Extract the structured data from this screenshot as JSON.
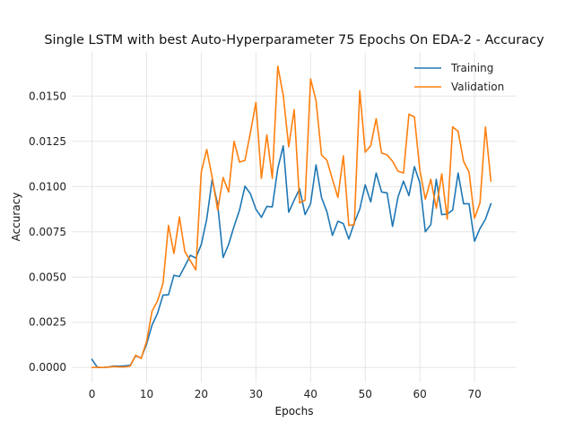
{
  "chart_data": {
    "type": "line",
    "title": "Single LSTM with best Auto-Hyperparameter 75 Epochs On EDA-2 - Accuracy",
    "xlabel": "Epochs",
    "ylabel": "Accuracy",
    "xlim": [
      -3.7,
      77.7
    ],
    "ylim": [
      -0.00083,
      0.01744
    ],
    "xticks": [
      0,
      10,
      20,
      30,
      40,
      50,
      60,
      70
    ],
    "yticks": [
      0.0,
      0.0025,
      0.005,
      0.0075,
      0.01,
      0.0125,
      0.015
    ],
    "ytick_labels": [
      "0.0000",
      "0.0025",
      "0.0050",
      "0.0075",
      "0.0100",
      "0.0125",
      "0.0150"
    ],
    "grid": true,
    "legend_position": "top-right",
    "series": [
      {
        "name": "Training",
        "color": "#1f77b4",
        "values": [
          0.00045,
          0.0,
          0.0,
          3e-05,
          8e-05,
          7e-05,
          9e-05,
          0.00012,
          0.00065,
          0.00052,
          0.0013,
          0.00235,
          0.003,
          0.004,
          0.00402,
          0.0051,
          0.00503,
          0.0056,
          0.0062,
          0.00605,
          0.0068,
          0.0082,
          0.0104,
          0.009,
          0.00608,
          0.0068,
          0.0078,
          0.0087,
          0.01002,
          0.0096,
          0.00875,
          0.0083,
          0.0089,
          0.00888,
          0.011,
          0.01225,
          0.00858,
          0.00925,
          0.00988,
          0.00845,
          0.00905,
          0.0112,
          0.0094,
          0.0086,
          0.0073,
          0.00808,
          0.00795,
          0.0071,
          0.008,
          0.00875,
          0.0101,
          0.00915,
          0.01075,
          0.0097,
          0.00965,
          0.0078,
          0.00942,
          0.0103,
          0.0095,
          0.0111,
          0.0102,
          0.0075,
          0.0079,
          0.0104,
          0.00845,
          0.00848,
          0.0087,
          0.01075,
          0.00905,
          0.00905,
          0.00698,
          0.00768,
          0.0082,
          0.00905
        ]
      },
      {
        "name": "Validation",
        "color": "#ff7f0e",
        "values": [
          0.0,
          2e-05,
          0.0,
          2e-05,
          5e-05,
          3e-05,
          3e-05,
          8e-05,
          0.00068,
          0.0005,
          0.00145,
          0.00312,
          0.00368,
          0.00465,
          0.00785,
          0.0063,
          0.00832,
          0.0064,
          0.0059,
          0.0054,
          0.0108,
          0.01205,
          0.0105,
          0.0087,
          0.0105,
          0.0097,
          0.0125,
          0.01135,
          0.01145,
          0.013,
          0.01465,
          0.01045,
          0.01285,
          0.01045,
          0.01665,
          0.01505,
          0.0122,
          0.01425,
          0.0091,
          0.00925,
          0.01595,
          0.01475,
          0.01175,
          0.01145,
          0.0104,
          0.0094,
          0.0117,
          0.00785,
          0.0079,
          0.0153,
          0.0119,
          0.01225,
          0.01375,
          0.01185,
          0.01175,
          0.0114,
          0.01085,
          0.01075,
          0.014,
          0.01385,
          0.0109,
          0.0093,
          0.0104,
          0.0088,
          0.0107,
          0.0082,
          0.0133,
          0.01305,
          0.0114,
          0.0108,
          0.00825,
          0.0091,
          0.0133,
          0.0103
        ]
      }
    ]
  }
}
